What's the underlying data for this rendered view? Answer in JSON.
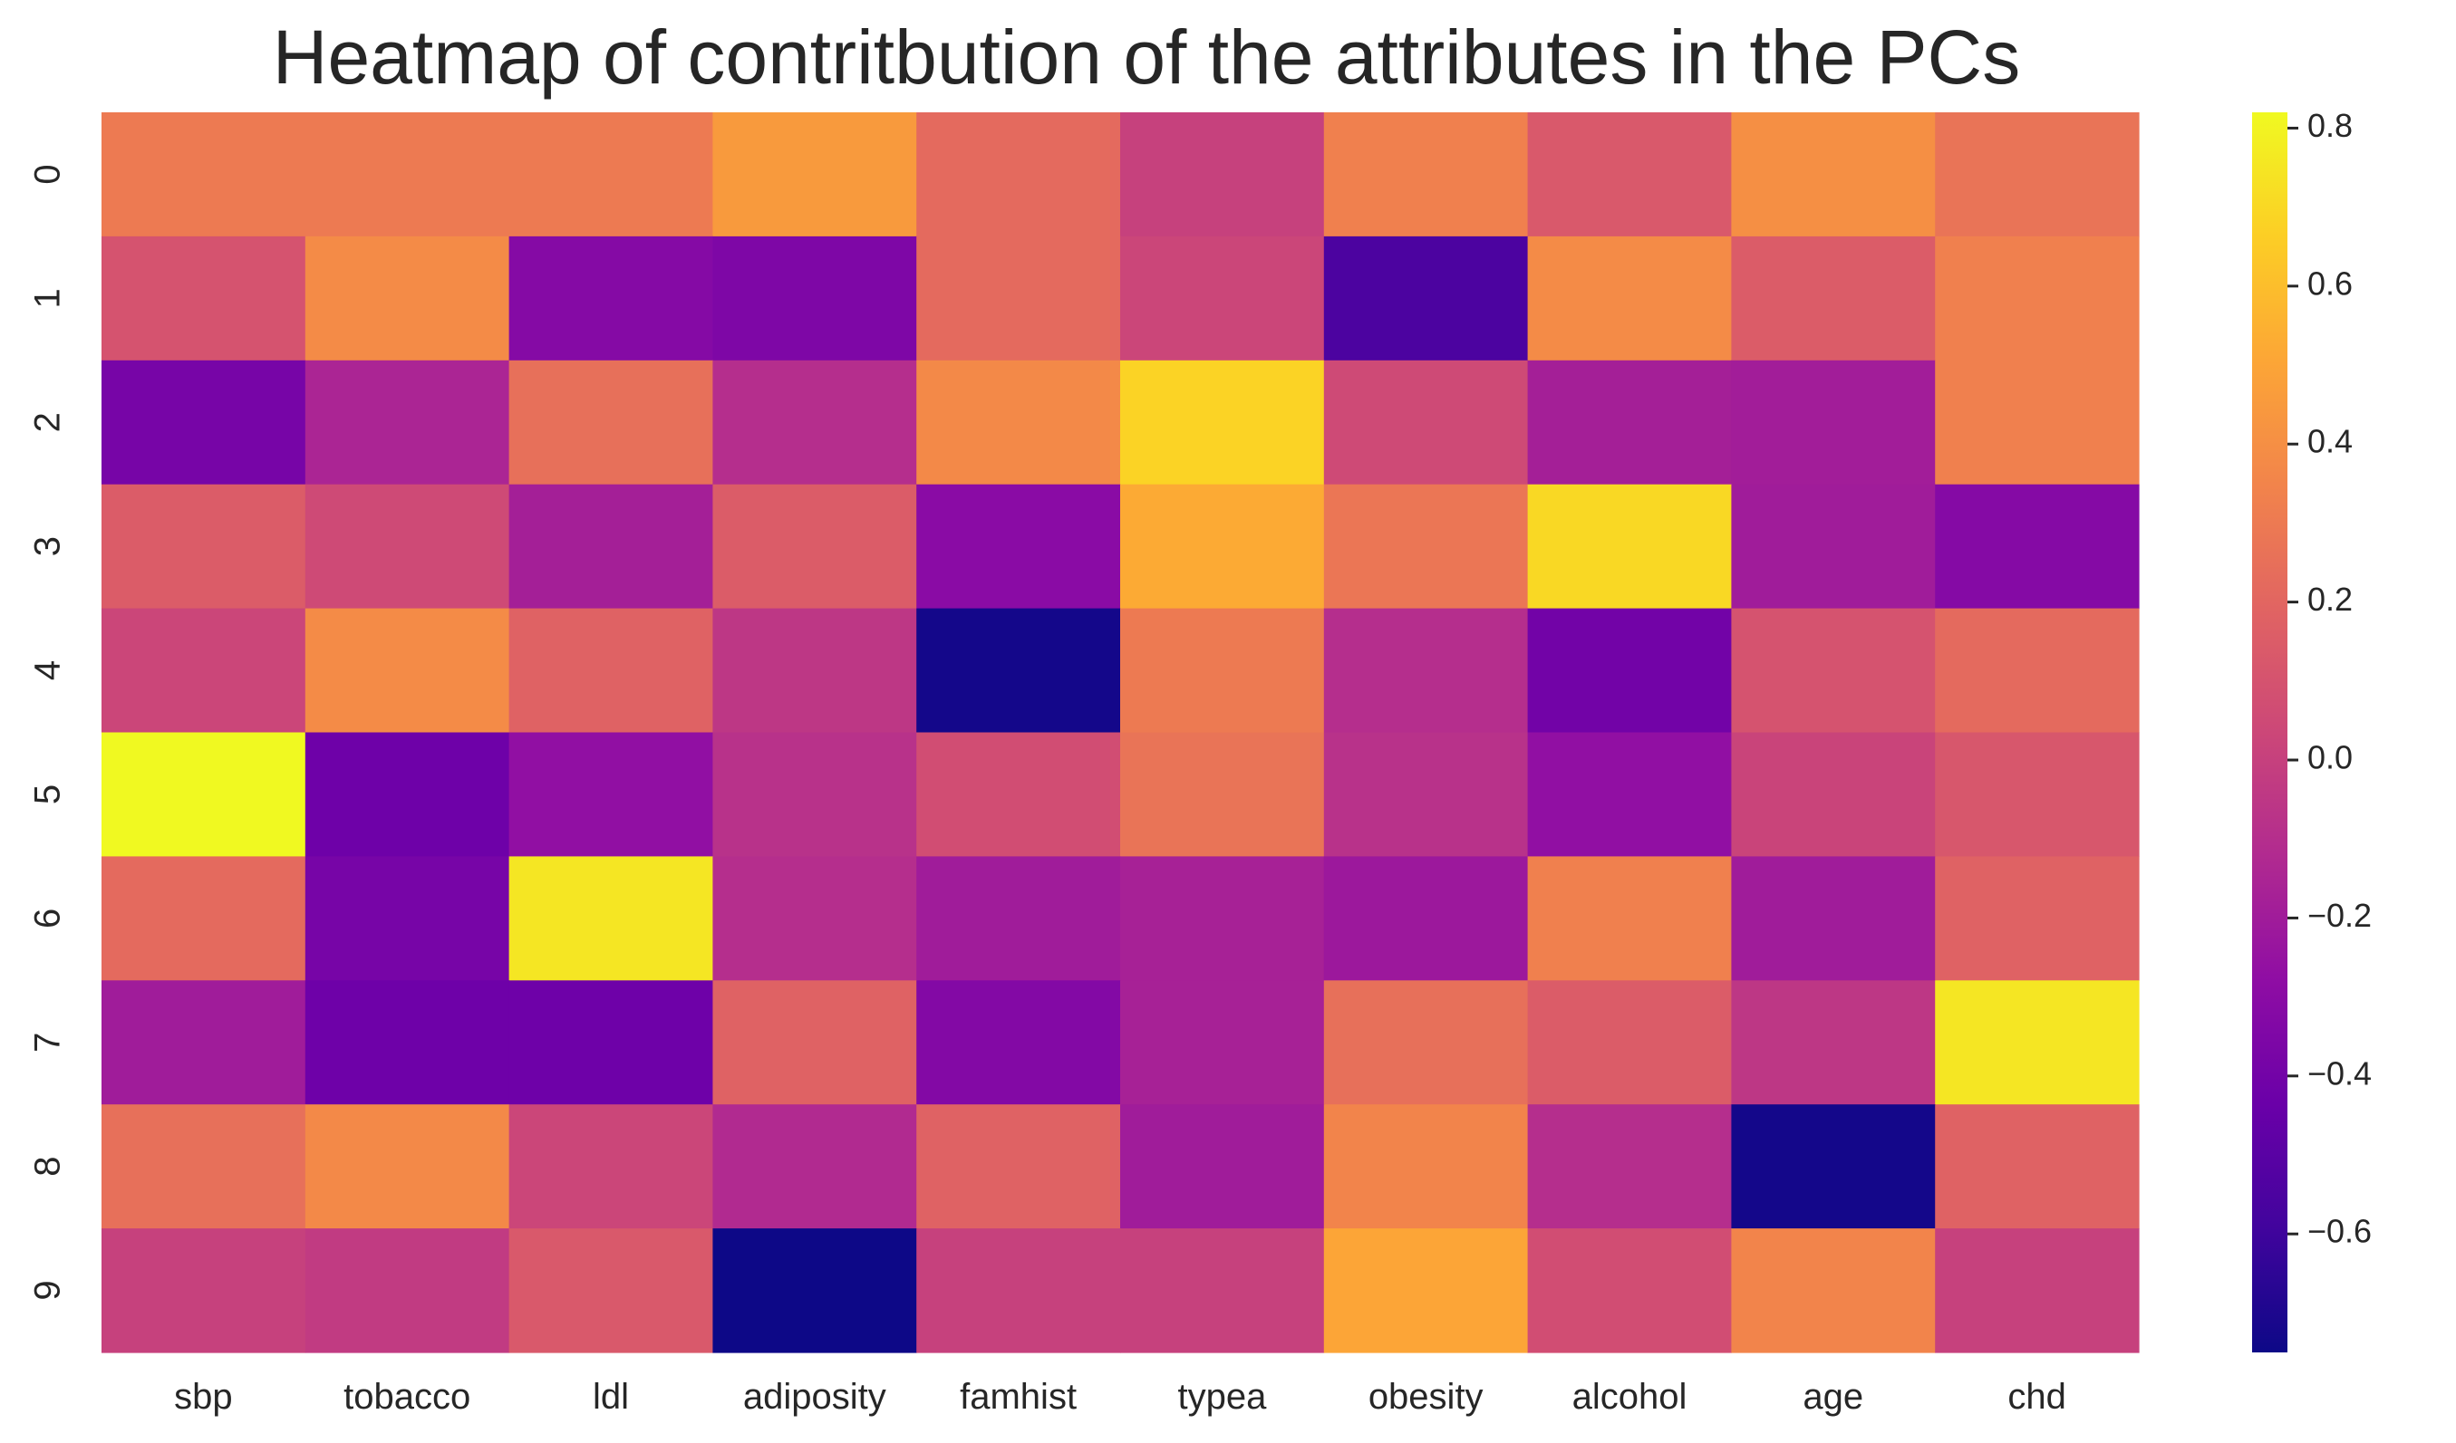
{
  "chart_data": {
    "type": "heatmap",
    "title": "Heatmap of contritbution of the attributes in the PCs",
    "x_labels": [
      "sbp",
      "tobacco",
      "ldl",
      "adiposity",
      "famhist",
      "typea",
      "obesity",
      "alcohol",
      "age",
      "chd"
    ],
    "y_labels": [
      "0",
      "1",
      "2",
      "3",
      "4",
      "5",
      "6",
      "7",
      "8",
      "9"
    ],
    "values": [
      [
        0.3,
        0.3,
        0.3,
        0.45,
        0.22,
        0.0,
        0.33,
        0.13,
        0.4,
        0.27
      ],
      [
        0.1,
        0.38,
        -0.32,
        -0.35,
        0.22,
        0.03,
        -0.55,
        0.38,
        0.15,
        0.33
      ],
      [
        -0.38,
        -0.15,
        0.25,
        -0.1,
        0.37,
        0.68,
        0.05,
        -0.18,
        -0.19,
        0.33
      ],
      [
        0.15,
        0.05,
        -0.18,
        0.15,
        -0.3,
        0.52,
        0.28,
        0.7,
        -0.2,
        -0.32
      ],
      [
        0.03,
        0.38,
        0.18,
        -0.05,
        -0.73,
        0.3,
        -0.1,
        -0.4,
        0.1,
        0.22
      ],
      [
        0.82,
        -0.42,
        -0.27,
        -0.08,
        0.07,
        0.27,
        -0.08,
        -0.27,
        0.02,
        0.12
      ],
      [
        0.22,
        -0.38,
        0.75,
        -0.1,
        -0.2,
        -0.17,
        -0.22,
        0.33,
        -0.2,
        0.18
      ],
      [
        -0.2,
        -0.42,
        -0.42,
        0.18,
        -0.33,
        -0.17,
        0.25,
        0.15,
        -0.05,
        0.75
      ],
      [
        0.25,
        0.37,
        0.03,
        -0.12,
        0.18,
        -0.2,
        0.35,
        -0.1,
        -0.73,
        0.18
      ],
      [
        0.0,
        -0.03,
        0.13,
        -0.75,
        0.0,
        0.0,
        0.5,
        0.07,
        0.35,
        0.0
      ]
    ],
    "colorscale": "plasma",
    "vmin": -0.75,
    "vmax": 0.82,
    "colorbar_ticks": [
      0.8,
      0.6,
      0.4,
      0.2,
      0.0,
      -0.2,
      -0.4,
      -0.6
    ],
    "colorbar_tick_labels": [
      "0.8",
      "0.6",
      "0.4",
      "0.2",
      "0.0",
      "−0.2",
      "−0.4",
      "−0.6"
    ]
  }
}
